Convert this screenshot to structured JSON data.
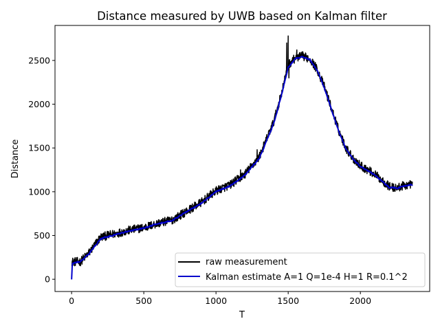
{
  "chart_data": {
    "type": "line",
    "title": "Distance measured by UWB based on Kalman filter",
    "xlabel": "T",
    "ylabel": "Distance",
    "xlim": [
      -115,
      2480
    ],
    "ylim": [
      -140,
      2900
    ],
    "xticks": [
      0,
      500,
      1000,
      1500,
      2000
    ],
    "yticks": [
      0,
      500,
      1000,
      1500,
      2000,
      2500
    ],
    "grid": false,
    "legend_position": "lower-right",
    "x_end": 2360,
    "series": [
      {
        "name": "raw measurement",
        "color": "#000000",
        "noise": 50,
        "anchors": [
          [
            0,
            200
          ],
          [
            60,
            200
          ],
          [
            120,
            300
          ],
          [
            200,
            480
          ],
          [
            300,
            520
          ],
          [
            400,
            560
          ],
          [
            500,
            590
          ],
          [
            600,
            640
          ],
          [
            700,
            680
          ],
          [
            800,
            780
          ],
          [
            900,
            880
          ],
          [
            1000,
            1010
          ],
          [
            1100,
            1080
          ],
          [
            1200,
            1200
          ],
          [
            1300,
            1400
          ],
          [
            1400,
            1800
          ],
          [
            1450,
            2100
          ],
          [
            1500,
            2450
          ],
          [
            1550,
            2530
          ],
          [
            1600,
            2550
          ],
          [
            1650,
            2520
          ],
          [
            1700,
            2400
          ],
          [
            1750,
            2200
          ],
          [
            1800,
            1950
          ],
          [
            1850,
            1700
          ],
          [
            1900,
            1500
          ],
          [
            1950,
            1380
          ],
          [
            2000,
            1300
          ],
          [
            2100,
            1200
          ],
          [
            2200,
            1060
          ],
          [
            2250,
            1040
          ],
          [
            2300,
            1070
          ],
          [
            2360,
            1090
          ]
        ],
        "spikes": [
          [
            1490,
            2700
          ],
          [
            1500,
            2780
          ],
          [
            1505,
            2300
          ],
          [
            1560,
            2620
          ],
          [
            1285,
            1480
          ],
          [
            1170,
            1250
          ]
        ]
      },
      {
        "name": "Kalman estimate A=1 Q=1e-4 H=1 R=0.1^2",
        "color": "#0000cc",
        "noise": 12,
        "anchors": [
          [
            0,
            0
          ],
          [
            5,
            180
          ],
          [
            60,
            200
          ],
          [
            120,
            290
          ],
          [
            200,
            460
          ],
          [
            300,
            510
          ],
          [
            400,
            550
          ],
          [
            500,
            585
          ],
          [
            600,
            635
          ],
          [
            700,
            675
          ],
          [
            800,
            775
          ],
          [
            900,
            870
          ],
          [
            1000,
            1000
          ],
          [
            1100,
            1070
          ],
          [
            1200,
            1190
          ],
          [
            1300,
            1380
          ],
          [
            1400,
            1780
          ],
          [
            1450,
            2080
          ],
          [
            1500,
            2420
          ],
          [
            1550,
            2520
          ],
          [
            1600,
            2540
          ],
          [
            1650,
            2510
          ],
          [
            1700,
            2390
          ],
          [
            1750,
            2190
          ],
          [
            1800,
            1940
          ],
          [
            1850,
            1690
          ],
          [
            1900,
            1490
          ],
          [
            1950,
            1370
          ],
          [
            2000,
            1290
          ],
          [
            2100,
            1190
          ],
          [
            2200,
            1050
          ],
          [
            2250,
            1040
          ],
          [
            2300,
            1060
          ],
          [
            2360,
            1080
          ]
        ],
        "spikes": []
      }
    ]
  }
}
